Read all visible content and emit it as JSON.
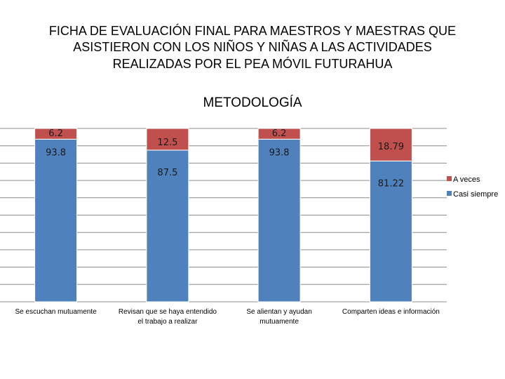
{
  "title_lines": [
    "FICHA DE EVALUACIÓN FINAL PARA MAESTROS Y MAESTRAS QUE",
    "ASISTIERON CON LOS NIÑOS Y NIÑAS A LAS ACTIVIDADES",
    "REALIZADAS POR EL PEA MÓVIL FUTURAHUA"
  ],
  "colors": {
    "casi_siempre": "#4f81bd",
    "a_veces": "#c0504d",
    "grid": "#8c8c8c"
  },
  "chart_data": {
    "type": "bar",
    "stacked": true,
    "title": "METODOLOGÍA",
    "categories": [
      [
        "Se escuchan mutuamente"
      ],
      [
        "Revisan que se haya entendido",
        "el trabajo a realizar"
      ],
      [
        "Se alientan y ayudan",
        "mutuamente"
      ],
      [
        "Comparten ideas e información"
      ]
    ],
    "series": [
      {
        "name": "Casi siempre",
        "values": [
          93.8,
          87.5,
          93.8,
          81.22
        ],
        "labels": [
          "93.8",
          "87.5",
          "93.8",
          "81.22"
        ]
      },
      {
        "name": "A veces",
        "values": [
          6.2,
          12.5,
          6.2,
          18.79
        ],
        "labels": [
          "6.2",
          "12.5",
          "6.2",
          "18.79"
        ]
      }
    ],
    "ylim": [
      0,
      100
    ],
    "grid": true,
    "legend_position": "right"
  }
}
